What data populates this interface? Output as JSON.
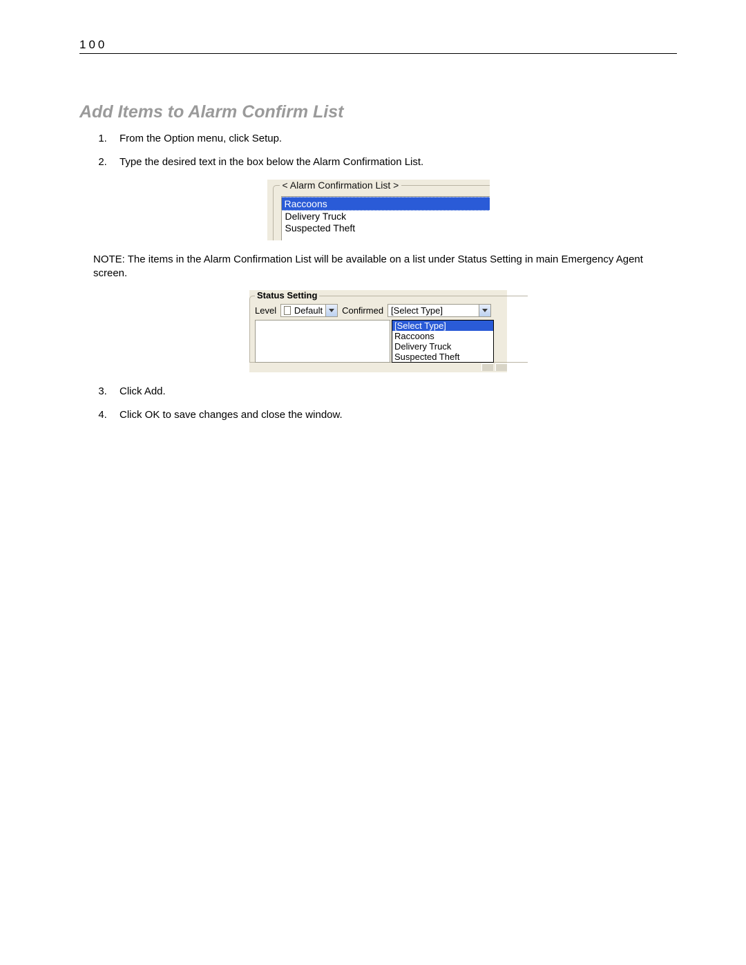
{
  "page_number": "100",
  "section_title": "Add Items to Alarm Confirm List",
  "steps_a": [
    "From the Option menu, click Setup.",
    "Type the desired text in the box below the Alarm Confirmation List."
  ],
  "note": "NOTE:  The items in the Alarm Confirmation List will be available on a list under Status Setting in main Emergency Agent screen.",
  "steps_b": [
    "Click Add.",
    "Click OK to save changes and close the window."
  ],
  "fig1": {
    "legend": "< Alarm Confirmation List >",
    "selected": "Raccoons",
    "items": [
      "Delivery Truck",
      "Suspected Theft"
    ],
    "colors": {
      "panel_bg": "#efebde",
      "border": "#b9b4a3",
      "list_border": "#9d9a8c",
      "highlight_bg": "#2a5bd7",
      "highlight_fg": "#ffffff"
    }
  },
  "fig2": {
    "legend": "Status Setting",
    "level_label": "Level",
    "checkbox_label": "Default",
    "confirmed_label": "Confirmed",
    "combo_value": "[Select Type]",
    "dropdown_selected": "[Select Type]",
    "dropdown_items": [
      "Raccoons",
      "Delivery Truck",
      "Suspected Theft"
    ],
    "colors": {
      "panel_bg": "#efebde",
      "border": "#b9b4a3",
      "input_border": "#9d9a8c",
      "highlight_bg": "#2a5bd7",
      "highlight_fg": "#ffffff",
      "button_grad_top": "#e7eefb",
      "button_grad_bot": "#bcd1f0"
    }
  }
}
